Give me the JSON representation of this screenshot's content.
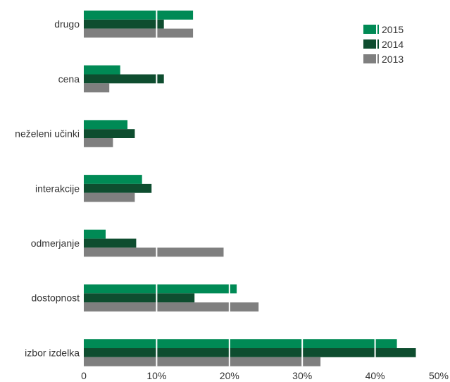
{
  "chart_data": {
    "type": "bar",
    "orientation": "horizontal",
    "categories": [
      "drugo",
      "cena",
      "neželeni učinki",
      "interakcije",
      "odmerjanje",
      "dostopnost",
      "izbor izdelka"
    ],
    "series": [
      {
        "name": "2015",
        "color": "#008a55",
        "values": [
          15,
          5,
          6,
          8,
          3,
          21,
          43
        ]
      },
      {
        "name": "2014",
        "color": "#0e4d2f",
        "values": [
          11,
          11,
          7,
          9.3,
          7.2,
          15.2,
          45.6
        ]
      },
      {
        "name": "2013",
        "color": "#7f7f7f",
        "values": [
          15,
          3.5,
          4,
          7,
          19.2,
          24,
          32.5
        ]
      }
    ],
    "x_ticks": [
      "0",
      "10%",
      "20%",
      "30%",
      "40%",
      "50%"
    ],
    "xlim": [
      0,
      50
    ],
    "gridlines": "white vertical lines over bars",
    "legend_position": "top-right"
  }
}
